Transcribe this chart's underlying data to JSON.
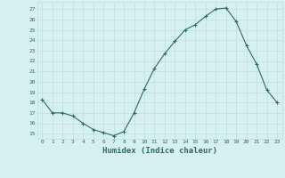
{
  "x": [
    0,
    1,
    2,
    3,
    4,
    5,
    6,
    7,
    8,
    9,
    10,
    11,
    12,
    13,
    14,
    15,
    16,
    17,
    18,
    19,
    20,
    21,
    22,
    23
  ],
  "y": [
    18.3,
    17.0,
    17.0,
    16.7,
    16.0,
    15.4,
    15.1,
    14.8,
    15.2,
    17.0,
    19.3,
    21.3,
    22.7,
    23.9,
    25.0,
    25.5,
    26.3,
    27.0,
    27.1,
    25.8,
    23.5,
    21.7,
    19.2,
    18.0
  ],
  "xlabel": "Humidex (Indice chaleur)",
  "ylim": [
    14.5,
    27.7
  ],
  "xlim": [
    -0.5,
    23.5
  ],
  "yticks": [
    15,
    16,
    17,
    18,
    19,
    20,
    21,
    22,
    23,
    24,
    25,
    26,
    27
  ],
  "xticks": [
    0,
    1,
    2,
    3,
    4,
    5,
    6,
    7,
    8,
    9,
    10,
    11,
    12,
    13,
    14,
    15,
    16,
    17,
    18,
    19,
    20,
    21,
    22,
    23
  ],
  "xtick_labels": [
    "0",
    "1",
    "2",
    "3",
    "4",
    "5",
    "6",
    "7",
    "8",
    "9",
    "10",
    "11",
    "12",
    "13",
    "14",
    "15",
    "16",
    "17",
    "18",
    "19",
    "20",
    "21",
    "22",
    "23"
  ],
  "line_color": "#2d6b5e",
  "marker": "+",
  "bg_color": "#d6f0f0",
  "grid_color": "#c0dede",
  "grid_color_minor": "#e0eeee"
}
